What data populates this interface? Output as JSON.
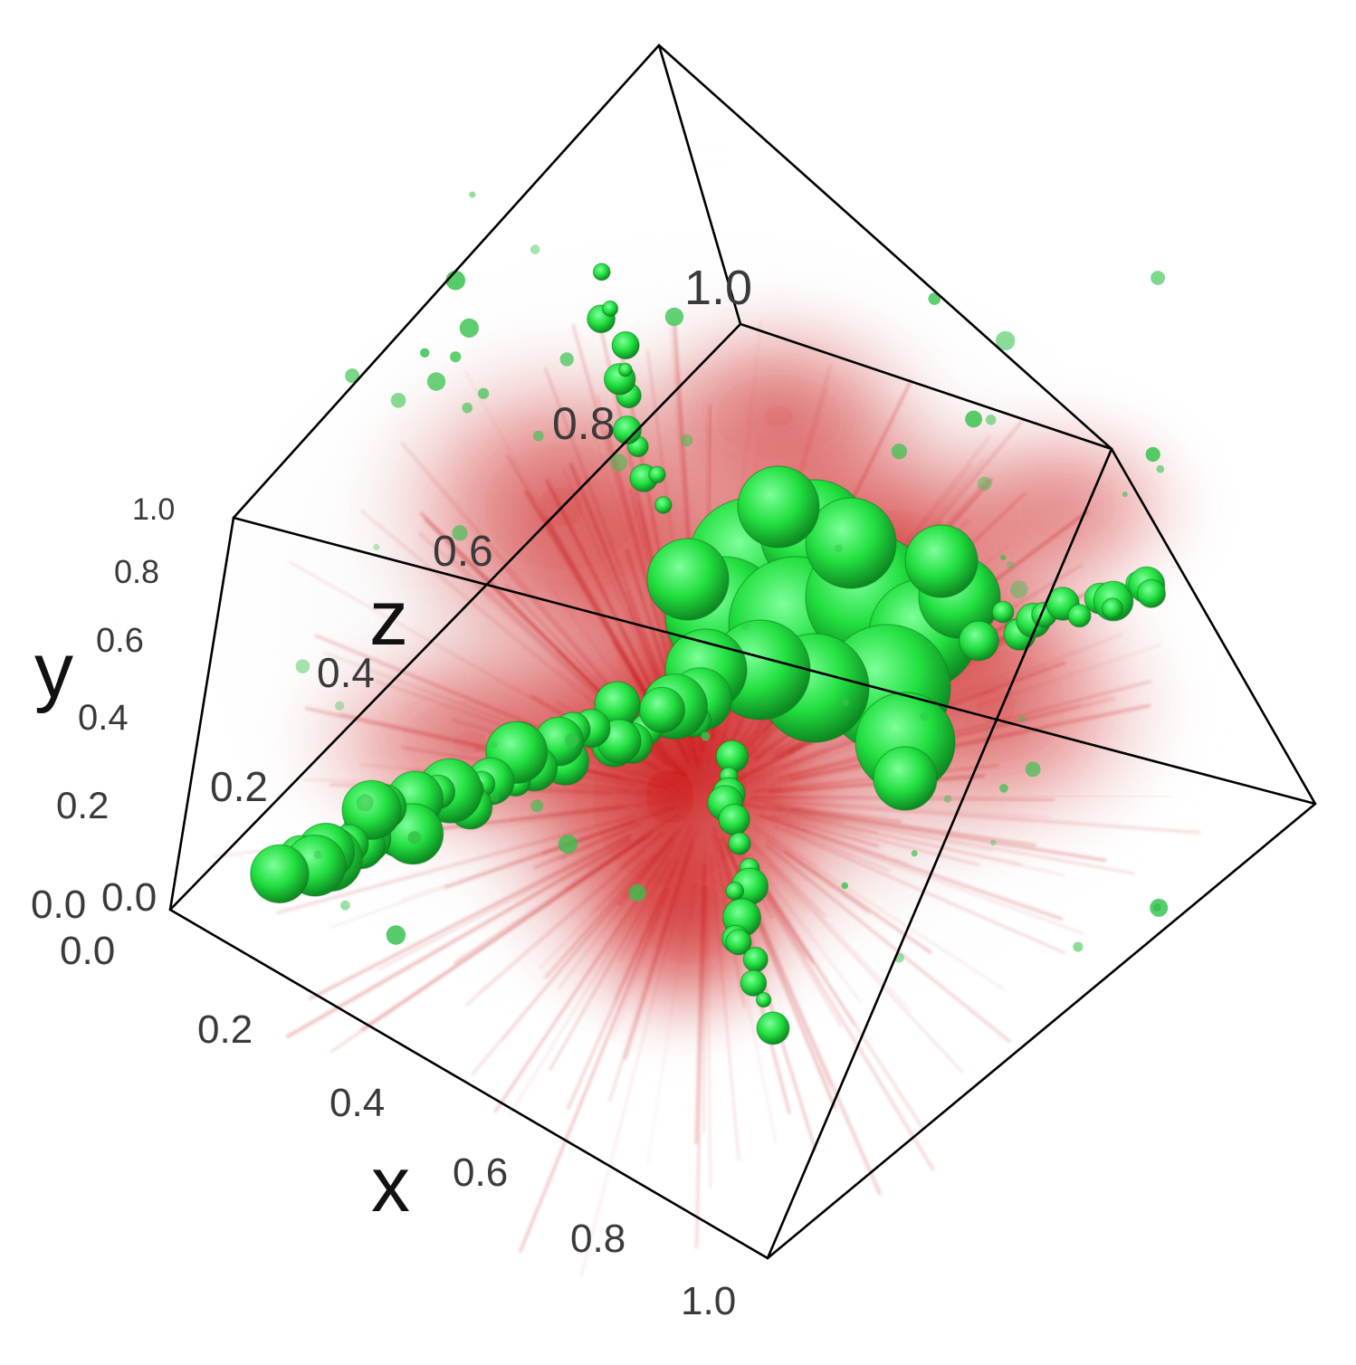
{
  "chart_data": {
    "type": "3d-volume",
    "axes": {
      "x": {
        "label": "x",
        "range": [
          0.0,
          1.0
        ],
        "ticks": [
          "0.0",
          "0.2",
          "0.4",
          "0.6",
          "0.8",
          "1.0"
        ]
      },
      "y": {
        "label": "y",
        "range": [
          0.0,
          1.0
        ],
        "ticks": [
          "0.0",
          "0.2",
          "0.4",
          "0.6",
          "0.8",
          "1.0"
        ]
      },
      "z": {
        "label": "z",
        "range": [
          0.0,
          1.0
        ],
        "ticks": [
          "0.0",
          "0.2",
          "0.4",
          "0.6",
          "0.8",
          "1.0"
        ]
      }
    },
    "volumes": [
      {
        "role": "diffuse-density",
        "color": "#c80000"
      },
      {
        "role": "isosurface-clumps",
        "color": "#22ee44"
      }
    ],
    "bounding_box": true,
    "grid": false,
    "legend": false
  }
}
